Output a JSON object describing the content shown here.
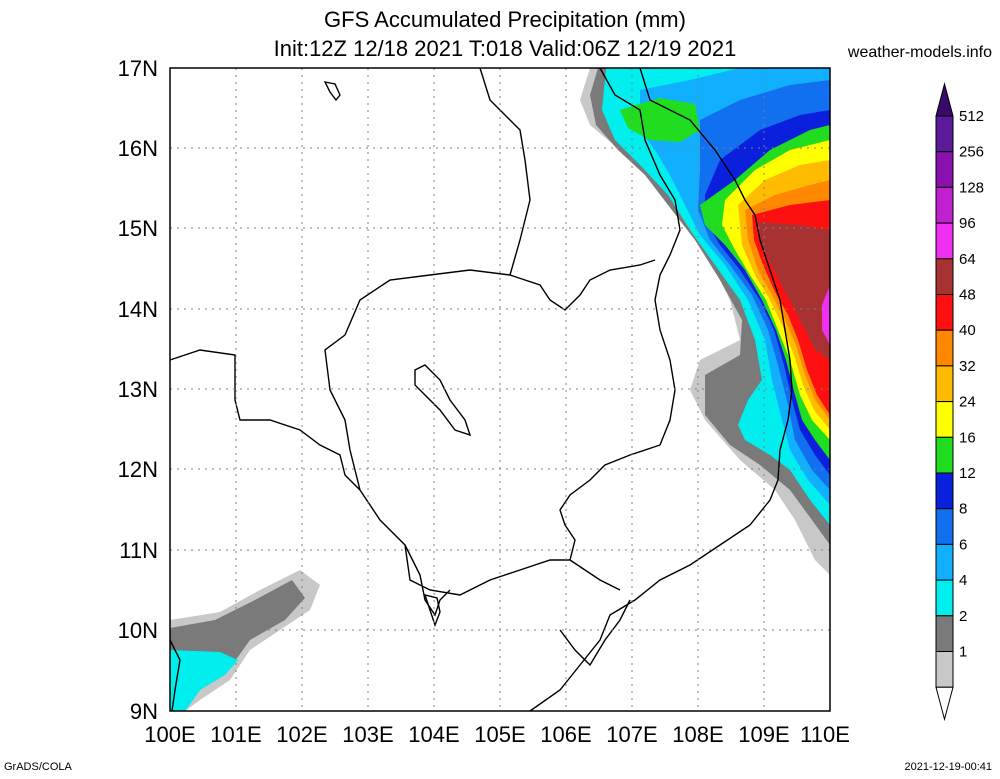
{
  "title_line1": "GFS Accumulated Precipitation (mm)",
  "title_line2": "Init:12Z 12/18 2021 T:018 Valid:06Z 12/19 2021",
  "site": "weather-models.info",
  "footer_left": "GrADS/COLA",
  "footer_right": "2021-12-19-00:41",
  "lat_labels": [
    "17N",
    "16N",
    "15N",
    "14N",
    "13N",
    "12N",
    "11N",
    "10N",
    "9N"
  ],
  "lon_labels": [
    "100E",
    "101E",
    "102E",
    "103E",
    "104E",
    "105E",
    "106E",
    "107E",
    "108E",
    "109E",
    "110E"
  ],
  "legend": {
    "values": [
      "512",
      "256",
      "128",
      "96",
      "64",
      "48",
      "40",
      "32",
      "24",
      "16",
      "12",
      "8",
      "6",
      "4",
      "2",
      "1"
    ],
    "colors": [
      "#5a1a9a",
      "#8a10b0",
      "#c020d0",
      "#f030f0",
      "#a83232",
      "#ff1010",
      "#ff8800",
      "#ffbb00",
      "#ffff00",
      "#20dd20",
      "#0a20dd",
      "#1070f0",
      "#10b0ff",
      "#00eeee",
      "#7a7a7a",
      "#c8c8c8"
    ],
    "top_triangle_color": "#3a0a6a",
    "bottom_triangle_color": "#ffffff"
  },
  "map": {
    "lon_range": [
      100,
      110
    ],
    "lat_range": [
      9,
      17
    ],
    "grid": true
  }
}
